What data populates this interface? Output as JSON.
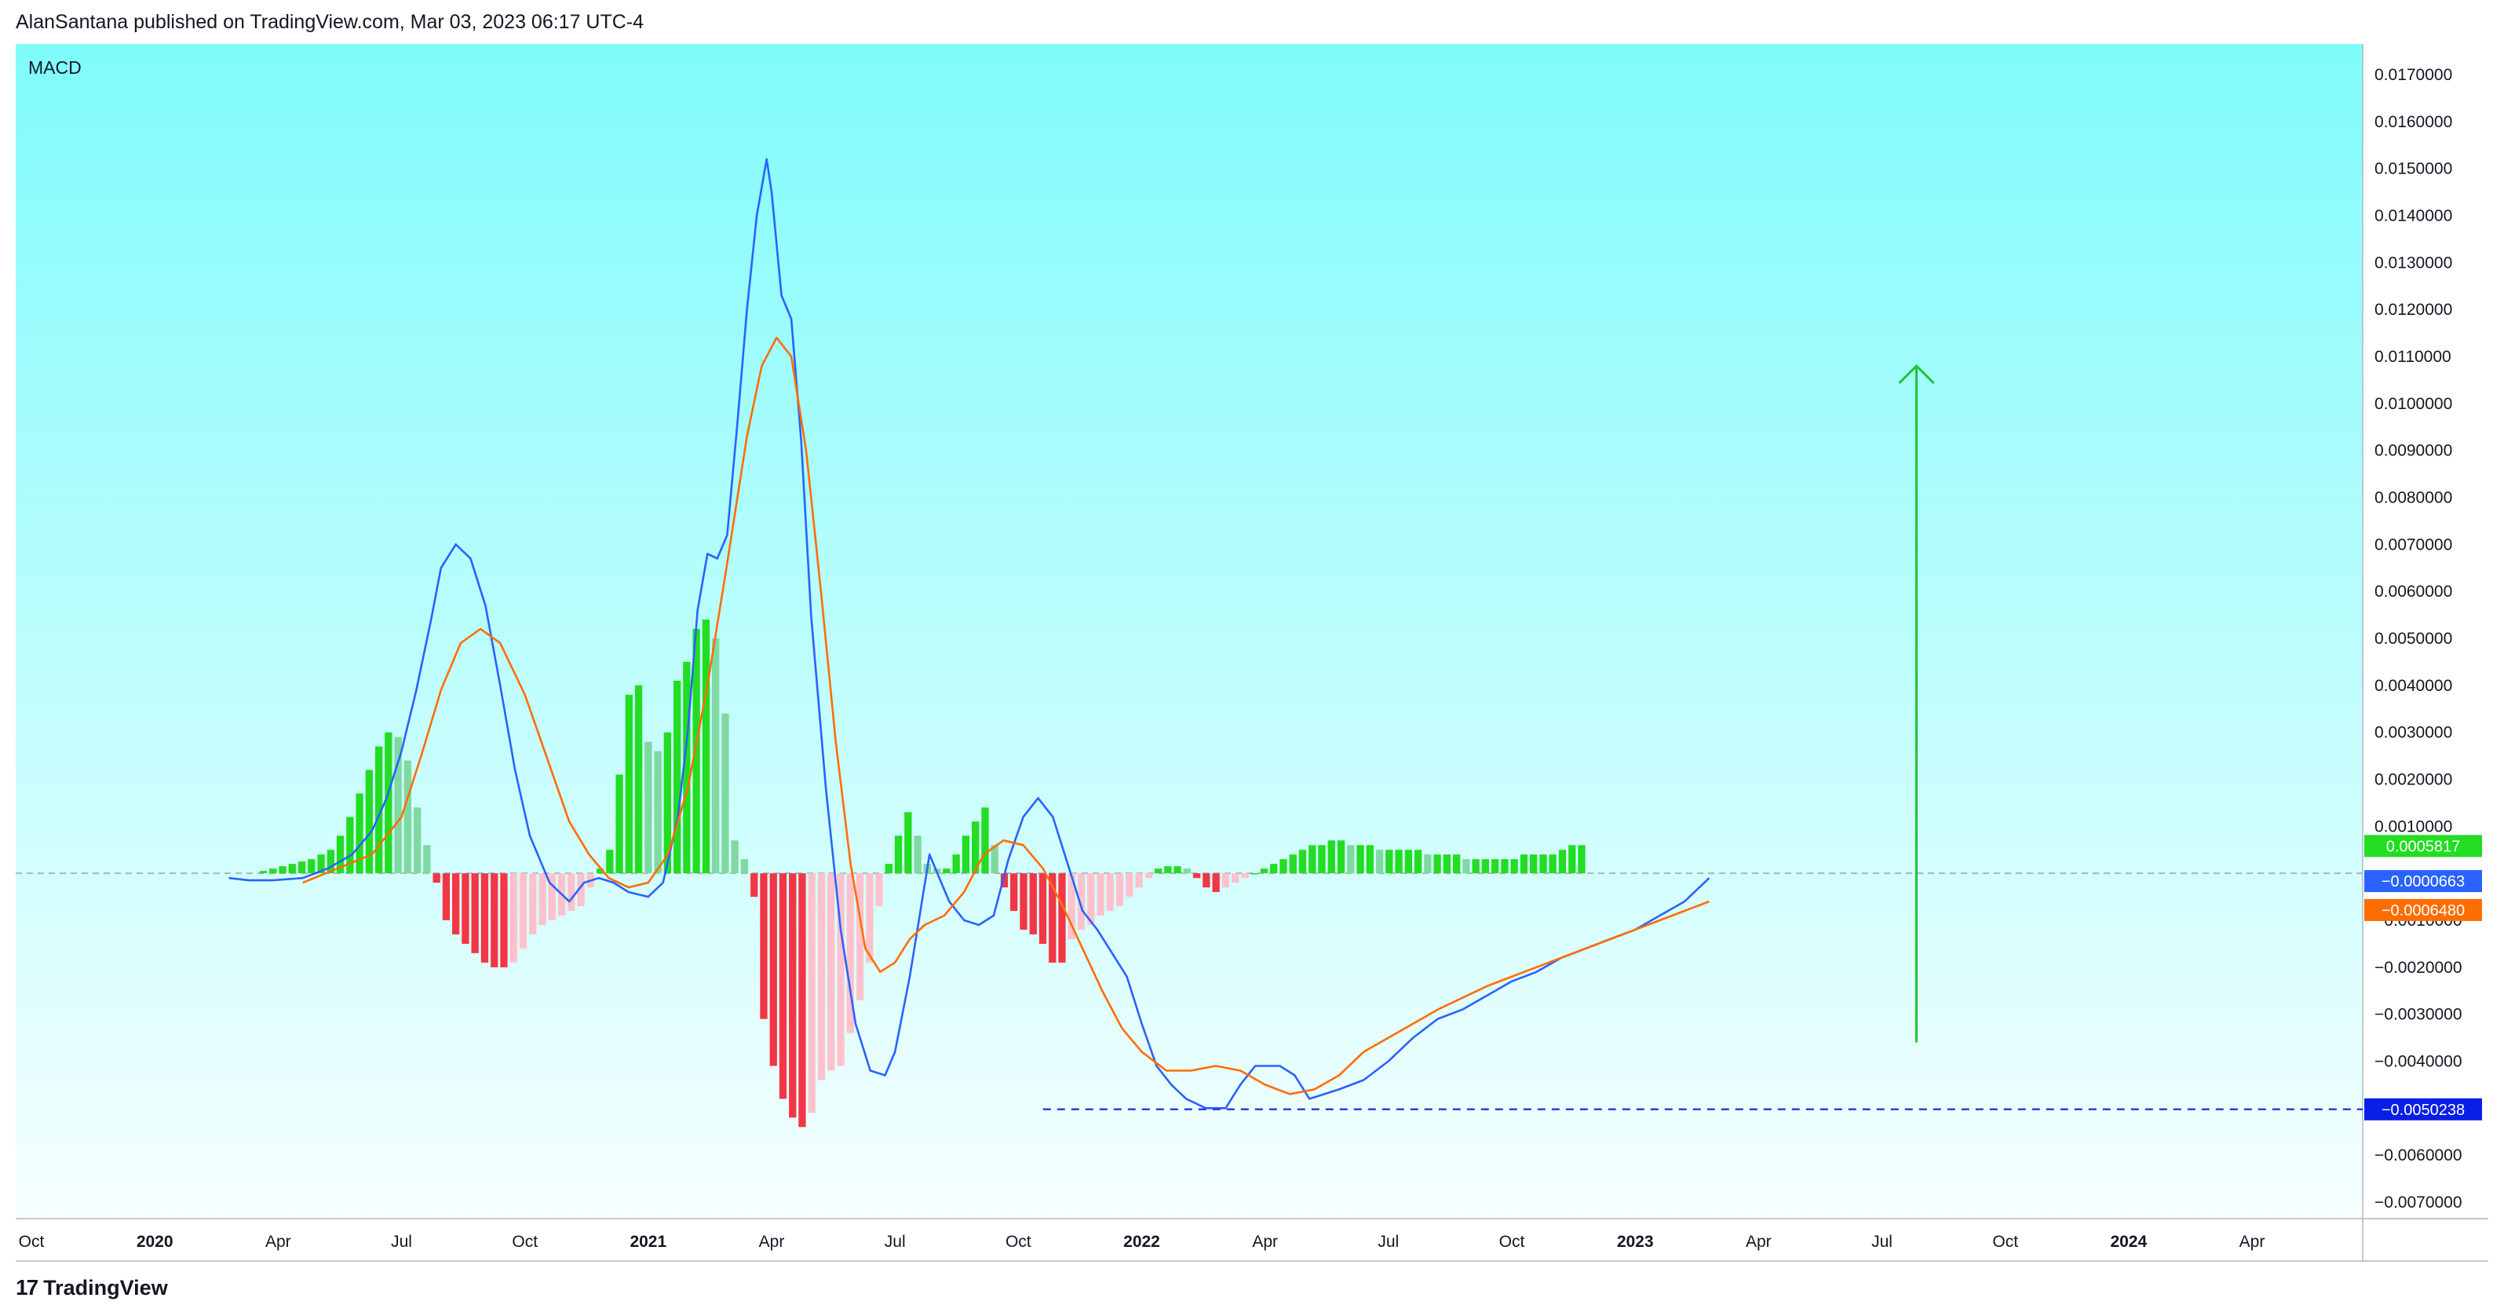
{
  "header": {
    "published_by": "AlanSantana published on TradingView.com, Mar 03, 2023 06:17 UTC-4"
  },
  "footer": {
    "brand": "TradingView",
    "logo_glyph": "17"
  },
  "colors": {
    "background_top": "#7FFBFB",
    "background_bottom": "#F7FFFF",
    "macd_line": "#2962FF",
    "signal_line": "#FF6D00",
    "hist_up_strong": "#22DD22",
    "hist_up_weak": "#7FD9A0",
    "hist_down_strong": "#F23645",
    "hist_down_weak": "#FFC2CC",
    "arrow": "#1FC43A",
    "support_line": "#2A3FE8"
  },
  "chart_data": {
    "type": "line",
    "title": "MACD",
    "indicator_name": "MACD",
    "xlabel": "",
    "ylabel": "",
    "ylim": [
      -0.0075,
      0.0172
    ],
    "y_ticks": [
      0.017,
      0.016,
      0.015,
      0.014,
      0.013,
      0.012,
      0.011,
      0.01,
      0.009,
      0.008,
      0.007,
      0.006,
      0.005,
      0.004,
      0.003,
      0.002,
      0.001,
      -0.001,
      -0.002,
      -0.003,
      -0.004,
      -0.006,
      -0.007
    ],
    "y_tick_labels": [
      "0.0170000",
      "0.0160000",
      "0.0150000",
      "0.0140000",
      "0.0130000",
      "0.0120000",
      "0.0110000",
      "0.0100000",
      "0.0090000",
      "0.0080000",
      "0.0070000",
      "0.0060000",
      "0.0050000",
      "0.0040000",
      "0.0030000",
      "0.0020000",
      "0.0010000",
      "−0.0010000",
      "−0.0020000",
      "−0.0030000",
      "−0.0040000",
      "−0.0060000",
      "−0.0070000"
    ],
    "x_ticks": [
      {
        "label": "Oct",
        "t": 2019.75,
        "bold": false
      },
      {
        "label": "2020",
        "t": 2020.0,
        "bold": true
      },
      {
        "label": "Apr",
        "t": 2020.25,
        "bold": false
      },
      {
        "label": "Jul",
        "t": 2020.5,
        "bold": false
      },
      {
        "label": "Oct",
        "t": 2020.75,
        "bold": false
      },
      {
        "label": "2021",
        "t": 2021.0,
        "bold": true
      },
      {
        "label": "Apr",
        "t": 2021.25,
        "bold": false
      },
      {
        "label": "Jul",
        "t": 2021.5,
        "bold": false
      },
      {
        "label": "Oct",
        "t": 2021.75,
        "bold": false
      },
      {
        "label": "2022",
        "t": 2022.0,
        "bold": true
      },
      {
        "label": "Apr",
        "t": 2022.25,
        "bold": false
      },
      {
        "label": "Jul",
        "t": 2022.5,
        "bold": false
      },
      {
        "label": "Oct",
        "t": 2022.75,
        "bold": false
      },
      {
        "label": "2023",
        "t": 2023.0,
        "bold": true
      },
      {
        "label": "Apr",
        "t": 2023.25,
        "bold": false
      },
      {
        "label": "Jul",
        "t": 2023.5,
        "bold": false
      },
      {
        "label": "Oct",
        "t": 2023.75,
        "bold": false
      },
      {
        "label": "2024",
        "t": 2024.0,
        "bold": true
      },
      {
        "label": "Apr",
        "t": 2024.25,
        "bold": false
      }
    ],
    "price_labels": [
      {
        "text": "0.0005817",
        "value": 0.0005817,
        "color": "#22DD22"
      },
      {
        "text": "−0.0000663",
        "value": -6.63e-05,
        "color": "#2962FF"
      },
      {
        "text": "−0.0006480",
        "value": -0.000648,
        "color": "#FF6D00"
      },
      {
        "text": "−0.0050238",
        "value": -0.0050238,
        "color": "#0A1FE6"
      }
    ],
    "support_level": -0.0050238,
    "arrow": {
      "from": [
        2023.57,
        -0.0036
      ],
      "to": [
        2023.57,
        0.0108
      ]
    },
    "series": [
      {
        "id": "macd",
        "x": [
          2020.15,
          2020.19,
          2020.24,
          2020.3,
          2020.35,
          2020.4,
          2020.44,
          2020.47,
          2020.5,
          2020.53,
          2020.56,
          2020.58,
          2020.61,
          2020.64,
          2020.67,
          2020.7,
          2020.73,
          2020.76,
          2020.8,
          2020.84,
          2020.87,
          2020.9,
          2020.93,
          2020.96,
          2021.0,
          2021.03,
          2021.06,
          2021.08,
          2021.1,
          2021.12,
          2021.14,
          2021.16,
          2021.18,
          2021.2,
          2021.22,
          2021.24,
          2021.25,
          2021.27,
          2021.29,
          2021.31,
          2021.33,
          2021.36,
          2021.39,
          2021.42,
          2021.45,
          2021.48,
          2021.5,
          2021.53,
          2021.55,
          2021.57,
          2021.59,
          2021.61,
          2021.64,
          2021.67,
          2021.7,
          2021.73,
          2021.76,
          2021.79,
          2021.82,
          2021.85,
          2021.88,
          2021.91,
          2021.94,
          2021.97,
          2022.0,
          2022.03,
          2022.06,
          2022.09,
          2022.13,
          2022.17,
          2022.2,
          2022.23,
          2022.25,
          2022.28,
          2022.31,
          2022.34,
          2022.37,
          2022.4,
          2022.45,
          2022.5,
          2022.55,
          2022.6,
          2022.65,
          2022.7,
          2022.75,
          2022.8,
          2022.85,
          2022.9,
          2022.95,
          2023.0,
          2023.05,
          2023.1,
          2023.15
        ],
        "values": [
          -0.0001,
          -0.00015,
          -0.00015,
          -0.0001,
          0.0001,
          0.0004,
          0.0009,
          0.0016,
          0.0026,
          0.0039,
          0.0054,
          0.0065,
          0.007,
          0.0067,
          0.0057,
          0.004,
          0.0022,
          0.0008,
          -0.0002,
          -0.0006,
          -0.0002,
          -0.0001,
          -0.0002,
          -0.0004,
          -0.0005,
          -0.0002,
          0.0012,
          0.003,
          0.0056,
          0.0068,
          0.0067,
          0.0072,
          0.0095,
          0.012,
          0.014,
          0.0152,
          0.0145,
          0.0123,
          0.0118,
          0.0092,
          0.0055,
          0.0018,
          -0.0012,
          -0.0032,
          -0.0042,
          -0.0043,
          -0.0038,
          -0.0022,
          -0.0009,
          0.0004,
          -0.0001,
          -0.0006,
          -0.001,
          -0.0011,
          -0.0009,
          0.0003,
          0.0012,
          0.0016,
          0.0012,
          0.0002,
          -0.0008,
          -0.0012,
          -0.0017,
          -0.0022,
          -0.0032,
          -0.0041,
          -0.0045,
          -0.0048,
          -0.005,
          -0.005,
          -0.0045,
          -0.0041,
          -0.0041,
          -0.0041,
          -0.0043,
          -0.0048,
          -0.0047,
          -0.0046,
          -0.0044,
          -0.004,
          -0.0035,
          -0.0031,
          -0.0029,
          -0.0026,
          -0.0023,
          -0.0021,
          -0.0018,
          -0.0016,
          -0.0014,
          -0.0012,
          -0.0009,
          -0.0006,
          -0.0001
        ]
      },
      {
        "id": "signal",
        "x": [
          2020.3,
          2020.37,
          2020.44,
          2020.5,
          2020.54,
          2020.58,
          2020.62,
          2020.66,
          2020.7,
          2020.75,
          2020.8,
          2020.84,
          2020.88,
          2020.92,
          2020.96,
          2021.0,
          2021.04,
          2021.08,
          2021.12,
          2021.16,
          2021.2,
          2021.23,
          2021.26,
          2021.29,
          2021.32,
          2021.35,
          2021.38,
          2021.41,
          2021.44,
          2021.47,
          2021.5,
          2021.53,
          2021.56,
          2021.6,
          2021.64,
          2021.68,
          2021.72,
          2021.76,
          2021.8,
          2021.84,
          2021.88,
          2021.92,
          2021.96,
          2022.0,
          2022.05,
          2022.1,
          2022.15,
          2022.2,
          2022.25,
          2022.3,
          2022.35,
          2022.4,
          2022.45,
          2022.5,
          2022.6,
          2022.7,
          2022.8,
          2022.9,
          2023.0,
          2023.1,
          2023.15
        ],
        "values": [
          -0.0002,
          0.0001,
          0.0004,
          0.0012,
          0.0025,
          0.0039,
          0.0049,
          0.0052,
          0.0049,
          0.0038,
          0.0023,
          0.0011,
          0.0004,
          -0.0001,
          -0.0003,
          -0.0002,
          0.0004,
          0.0018,
          0.004,
          0.0066,
          0.0093,
          0.0108,
          0.0114,
          0.011,
          0.009,
          0.006,
          0.0028,
          0.0002,
          -0.0016,
          -0.0021,
          -0.0019,
          -0.0014,
          -0.0011,
          -0.0009,
          -0.0004,
          0.0004,
          0.0007,
          0.0006,
          0.0001,
          -0.0007,
          -0.0016,
          -0.0025,
          -0.0033,
          -0.0038,
          -0.0042,
          -0.0042,
          -0.0041,
          -0.0042,
          -0.0045,
          -0.0047,
          -0.0046,
          -0.0043,
          -0.0038,
          -0.0035,
          -0.0029,
          -0.0024,
          -0.002,
          -0.0016,
          -0.0012,
          -0.0008,
          -0.0006
        ]
      }
    ],
    "histogram": {
      "x_start": 2020.22,
      "x_step": 0.0195,
      "values": [
        5e-05,
        0.0001,
        0.00015,
        0.0002,
        0.00025,
        0.0003,
        0.0004,
        0.0005,
        0.0008,
        0.0012,
        0.0017,
        0.0022,
        0.0027,
        0.003,
        0.0029,
        0.0024,
        0.0014,
        0.0006,
        -0.0002,
        -0.001,
        -0.0013,
        -0.0015,
        -0.0017,
        -0.0019,
        -0.002,
        -0.002,
        -0.0019,
        -0.0016,
        -0.0013,
        -0.0011,
        -0.001,
        -0.0009,
        -0.0008,
        -0.0007,
        -0.0003,
        0.0001,
        0.0005,
        0.0021,
        0.0038,
        0.004,
        0.0028,
        0.0026,
        0.003,
        0.0041,
        0.0045,
        0.0052,
        0.0054,
        0.005,
        0.0034,
        0.0007,
        0.0003,
        -0.0005,
        -0.0031,
        -0.0041,
        -0.0048,
        -0.0052,
        -0.0054,
        -0.0051,
        -0.0044,
        -0.0042,
        -0.0041,
        -0.0034,
        -0.0027,
        -0.0019,
        -0.0007,
        0.0002,
        0.0008,
        0.0013,
        0.0008,
        0.0002,
        0.0001,
        0.0001,
        0.0004,
        0.0008,
        0.0011,
        0.0014,
        0.0006,
        -0.0003,
        -0.0008,
        -0.0012,
        -0.0013,
        -0.0015,
        -0.0019,
        -0.0019,
        -0.0014,
        -0.0012,
        -0.0011,
        -0.0009,
        -0.0008,
        -0.0007,
        -0.0005,
        -0.0003,
        -0.0001,
        0.0001,
        0.00015,
        0.00015,
        0.0001,
        -0.0001,
        -0.0003,
        -0.0004,
        -0.0003,
        -0.0002,
        -0.0001,
        0.0,
        0.0001,
        0.0002,
        0.0003,
        0.0004,
        0.0005,
        0.0006,
        0.0006,
        0.0007,
        0.0007,
        0.0006,
        0.0006,
        0.0006,
        0.0005,
        0.0005,
        0.0005,
        0.0005,
        0.0005,
        0.0004,
        0.0004,
        0.0004,
        0.0004,
        0.0003,
        0.0003,
        0.0003,
        0.0003,
        0.0003,
        0.0003,
        0.0004,
        0.0004,
        0.0004,
        0.0004,
        0.0005,
        0.0006,
        0.0006
      ]
    }
  }
}
